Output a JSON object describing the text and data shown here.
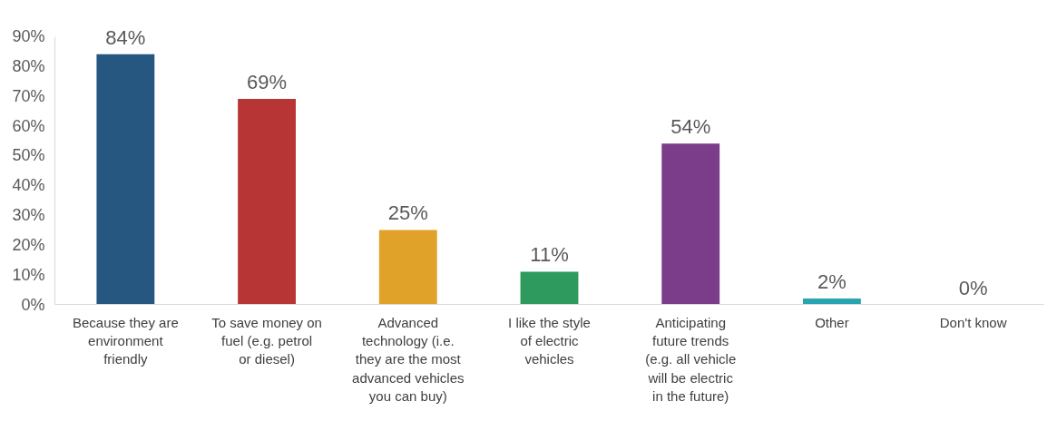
{
  "chart_data": {
    "type": "bar",
    "categories": [
      "Because they are environment friendly",
      "To save money on fuel (e.g. petrol or diesel)",
      "Advanced technology (i.e. they are the most advanced vehicles you can buy)",
      "I like the style of electric vehicles",
      "Anticipating future trends (e.g. all vehicle will be electric in the future)",
      "Other",
      "Don't know"
    ],
    "values": [
      84,
      69,
      25,
      11,
      54,
      2,
      0
    ],
    "value_labels": [
      "84%",
      "69%",
      "25%",
      "11%",
      "54%",
      "2%",
      "0%"
    ],
    "colors": [
      "#255781",
      "#b83536",
      "#e0a228",
      "#2e9a5d",
      "#7b3c8a",
      "#27a4b0",
      "#7f7f7f"
    ],
    "ylim": [
      0,
      90
    ],
    "yticks": [
      {
        "value": 0,
        "label": "0%"
      },
      {
        "value": 10,
        "label": "10%"
      },
      {
        "value": 20,
        "label": "20%"
      },
      {
        "value": 30,
        "label": "30%"
      },
      {
        "value": 40,
        "label": "40%"
      },
      {
        "value": 50,
        "label": "50%"
      },
      {
        "value": 60,
        "label": "60%"
      },
      {
        "value": 70,
        "label": "70%"
      },
      {
        "value": 80,
        "label": "80%"
      },
      {
        "value": 90,
        "label": "90%"
      }
    ],
    "grid": false
  }
}
